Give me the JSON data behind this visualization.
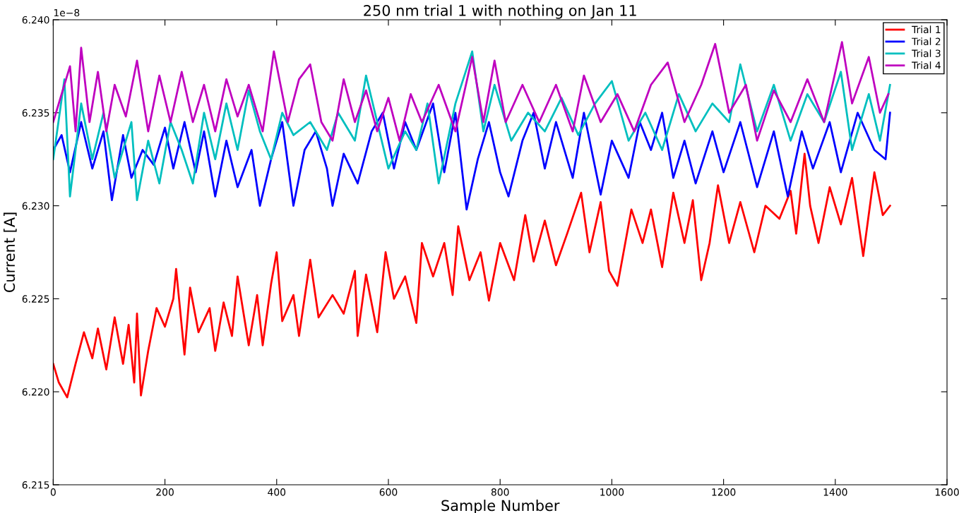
{
  "chart_data": {
    "type": "line",
    "title": "250 nm trial 1 with nothing on Jan 11",
    "xlabel": "Sample Number",
    "ylabel": "Current [A]",
    "annotations": [
      "1e−8"
    ],
    "xlim": [
      0,
      1600
    ],
    "xticks": [
      0,
      200,
      400,
      600,
      800,
      1000,
      1200,
      1400,
      1600
    ],
    "ylim": [
      6.215,
      6.24
    ],
    "yticks": [
      {
        "value": 6.215,
        "label": "6.215"
      },
      {
        "value": 6.22,
        "label": "6.220"
      },
      {
        "value": 6.225,
        "label": "6.225"
      },
      {
        "value": 6.23,
        "label": "6.230"
      },
      {
        "value": 6.235,
        "label": "6.235"
      },
      {
        "value": 6.24,
        "label": "6.240"
      }
    ],
    "legend": "top right",
    "series": [
      {
        "name": "Trial 1",
        "color": "#ff0000",
        "x": [
          0,
          10,
          25,
          40,
          55,
          70,
          80,
          95,
          110,
          125,
          135,
          145,
          150,
          157,
          170,
          185,
          200,
          215,
          220,
          235,
          245,
          260,
          280,
          290,
          305,
          320,
          330,
          350,
          365,
          375,
          390,
          400,
          410,
          430,
          440,
          460,
          475,
          500,
          520,
          540,
          545,
          560,
          580,
          595,
          610,
          630,
          650,
          660,
          680,
          700,
          715,
          725,
          745,
          765,
          780,
          800,
          825,
          845,
          860,
          880,
          900,
          920,
          945,
          960,
          980,
          995,
          1010,
          1035,
          1055,
          1070,
          1090,
          1110,
          1130,
          1145,
          1160,
          1175,
          1190,
          1210,
          1230,
          1255,
          1275,
          1300,
          1320,
          1330,
          1345,
          1355,
          1370,
          1390,
          1410,
          1430,
          1450,
          1470,
          1485,
          1498
        ],
        "values": [
          6.2215,
          6.2205,
          6.2197,
          6.2215,
          6.2232,
          6.2218,
          6.2234,
          6.2212,
          6.224,
          6.2215,
          6.2236,
          6.2205,
          6.2242,
          6.2198,
          6.2222,
          6.2245,
          6.2235,
          6.225,
          6.2266,
          6.222,
          6.2256,
          6.2232,
          6.2245,
          6.2222,
          6.2248,
          6.223,
          6.2262,
          6.2225,
          6.2252,
          6.2225,
          6.2258,
          6.2275,
          6.2238,
          6.2252,
          6.223,
          6.2271,
          6.224,
          6.2252,
          6.2242,
          6.2265,
          6.223,
          6.2263,
          6.2232,
          6.2275,
          6.225,
          6.2262,
          6.2237,
          6.228,
          6.2262,
          6.228,
          6.2252,
          6.2289,
          6.226,
          6.2275,
          6.2249,
          6.228,
          6.226,
          6.2295,
          6.227,
          6.2292,
          6.2268,
          6.2285,
          6.2307,
          6.2275,
          6.2302,
          6.2265,
          6.2257,
          6.2298,
          6.228,
          6.2298,
          6.2267,
          6.2307,
          6.228,
          6.2303,
          6.226,
          6.228,
          6.2311,
          6.228,
          6.2302,
          6.2275,
          6.23,
          6.2293,
          6.2308,
          6.2285,
          6.2328,
          6.23,
          6.228,
          6.231,
          6.229,
          6.2315,
          6.2273,
          6.2318,
          6.2295,
          6.23
        ]
      },
      {
        "name": "Trial 2",
        "color": "#0000ff",
        "x": [
          0,
          15,
          30,
          50,
          70,
          90,
          105,
          125,
          140,
          160,
          180,
          200,
          215,
          235,
          255,
          270,
          290,
          310,
          330,
          355,
          370,
          390,
          410,
          430,
          450,
          470,
          490,
          500,
          520,
          545,
          570,
          590,
          610,
          630,
          650,
          680,
          700,
          720,
          740,
          760,
          780,
          800,
          815,
          840,
          860,
          880,
          900,
          930,
          950,
          980,
          1000,
          1030,
          1050,
          1070,
          1090,
          1110,
          1130,
          1150,
          1180,
          1200,
          1230,
          1260,
          1290,
          1315,
          1340,
          1360,
          1390,
          1410,
          1440,
          1470,
          1490,
          1498
        ],
        "values": [
          6.233,
          6.2338,
          6.2318,
          6.2345,
          6.232,
          6.234,
          6.2303,
          6.2338,
          6.2315,
          6.233,
          6.2322,
          6.2342,
          6.232,
          6.2345,
          6.2318,
          6.234,
          6.2305,
          6.2335,
          6.231,
          6.233,
          6.23,
          6.2325,
          6.2345,
          6.23,
          6.233,
          6.234,
          6.232,
          6.23,
          6.2328,
          6.2312,
          6.234,
          6.235,
          6.232,
          6.2345,
          6.233,
          6.2355,
          6.2318,
          6.235,
          6.2298,
          6.2325,
          6.2345,
          6.2318,
          6.2305,
          6.2335,
          6.235,
          6.232,
          6.2345,
          6.2315,
          6.235,
          6.2306,
          6.2335,
          6.2315,
          6.2345,
          6.233,
          6.235,
          6.2315,
          6.2335,
          6.2312,
          6.234,
          6.2318,
          6.2345,
          6.231,
          6.234,
          6.2305,
          6.234,
          6.232,
          6.2345,
          6.2318,
          6.235,
          6.233,
          6.2325,
          6.235
        ]
      },
      {
        "name": "Trial 3",
        "color": "#00bfbf",
        "x": [
          0,
          20,
          30,
          50,
          70,
          90,
          110,
          140,
          150,
          170,
          190,
          210,
          230,
          250,
          270,
          290,
          310,
          330,
          350,
          370,
          390,
          410,
          430,
          460,
          490,
          510,
          540,
          560,
          580,
          600,
          630,
          650,
          670,
          690,
          720,
          750,
          770,
          790,
          820,
          850,
          880,
          910,
          940,
          970,
          1000,
          1030,
          1060,
          1090,
          1120,
          1150,
          1180,
          1210,
          1230,
          1260,
          1290,
          1320,
          1350,
          1380,
          1410,
          1430,
          1460,
          1480,
          1498
        ],
        "values": [
          6.2325,
          6.2368,
          6.2305,
          6.2355,
          6.2325,
          6.235,
          6.2315,
          6.2345,
          6.2303,
          6.2335,
          6.2312,
          6.2345,
          6.233,
          6.2312,
          6.235,
          6.2325,
          6.2355,
          6.233,
          6.2362,
          6.234,
          6.2325,
          6.235,
          6.2338,
          6.2345,
          6.233,
          6.235,
          6.2335,
          6.237,
          6.2345,
          6.232,
          6.234,
          6.233,
          6.2355,
          6.2312,
          6.2355,
          6.2383,
          6.234,
          6.2365,
          6.2335,
          6.235,
          6.234,
          6.2358,
          6.2338,
          6.2355,
          6.2367,
          6.2335,
          6.235,
          6.233,
          6.236,
          6.234,
          6.2355,
          6.2345,
          6.2376,
          6.234,
          6.2365,
          6.2335,
          6.236,
          6.2345,
          6.2372,
          6.233,
          6.236,
          6.2335,
          6.2365
        ]
      },
      {
        "name": "Trial 4",
        "color": "#bf00bf",
        "x": [
          0,
          15,
          30,
          40,
          50,
          65,
          80,
          95,
          110,
          130,
          150,
          170,
          190,
          210,
          230,
          250,
          270,
          290,
          310,
          330,
          350,
          375,
          395,
          420,
          440,
          460,
          480,
          500,
          520,
          540,
          560,
          580,
          600,
          620,
          640,
          660,
          690,
          720,
          750,
          770,
          790,
          810,
          840,
          870,
          900,
          930,
          950,
          980,
          1010,
          1040,
          1070,
          1100,
          1130,
          1160,
          1185,
          1210,
          1240,
          1260,
          1290,
          1320,
          1350,
          1380,
          1412,
          1430,
          1460,
          1480,
          1495
        ],
        "values": [
          6.2345,
          6.236,
          6.2375,
          6.234,
          6.2385,
          6.2345,
          6.2372,
          6.234,
          6.2365,
          6.2348,
          6.2378,
          6.234,
          6.237,
          6.2345,
          6.2372,
          6.2345,
          6.2365,
          6.234,
          6.2368,
          6.2348,
          6.2365,
          6.234,
          6.2383,
          6.2345,
          6.2368,
          6.2376,
          6.2345,
          6.2335,
          6.2368,
          6.2345,
          6.2362,
          6.234,
          6.2358,
          6.2335,
          6.236,
          6.2345,
          6.2365,
          6.234,
          6.238,
          6.2345,
          6.2378,
          6.2345,
          6.2365,
          6.2345,
          6.2365,
          6.234,
          6.237,
          6.2345,
          6.236,
          6.234,
          6.2365,
          6.2377,
          6.2345,
          6.2365,
          6.2387,
          6.235,
          6.2365,
          6.2335,
          6.2362,
          6.2345,
          6.2368,
          6.2345,
          6.2388,
          6.2355,
          6.238,
          6.235,
          6.236
        ]
      }
    ]
  }
}
